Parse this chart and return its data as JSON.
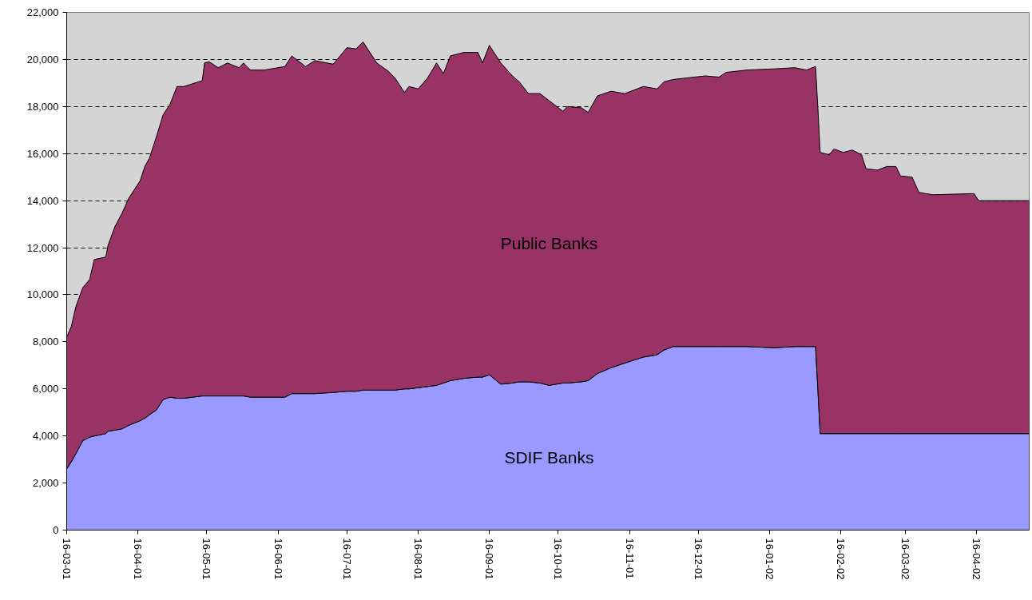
{
  "chart_data": {
    "type": "area",
    "stacked": true,
    "x": [
      "2001-03-16",
      "2001-03-18",
      "2001-03-20",
      "2001-03-23",
      "2001-03-26",
      "2001-03-28",
      "2001-04-02",
      "2001-04-03",
      "2001-04-06",
      "2001-04-09",
      "2001-04-12",
      "2001-04-17",
      "2001-04-19",
      "2001-04-21",
      "2001-04-24",
      "2001-04-27",
      "2001-04-30",
      "2001-05-03",
      "2001-05-06",
      "2001-05-14",
      "2001-05-15",
      "2001-05-17",
      "2001-05-21",
      "2001-05-25",
      "2001-05-30",
      "2001-06-01",
      "2001-06-04",
      "2001-06-10",
      "2001-06-19",
      "2001-06-22",
      "2001-06-28",
      "2001-07-02",
      "2001-07-10",
      "2001-07-16",
      "2001-07-20",
      "2001-07-23",
      "2001-07-29",
      "2001-08-03",
      "2001-08-06",
      "2001-08-10",
      "2001-08-12",
      "2001-08-16",
      "2001-08-20",
      "2001-08-24",
      "2001-08-27",
      "2001-08-30",
      "2001-09-05",
      "2001-09-11",
      "2001-09-13",
      "2001-09-16",
      "2001-09-21",
      "2001-09-26",
      "2001-09-29",
      "2001-10-03",
      "2001-10-08",
      "2001-10-12",
      "2001-10-18",
      "2001-10-20",
      "2001-10-26",
      "2001-10-29",
      "2001-11-02",
      "2001-11-08",
      "2001-11-14",
      "2001-11-22",
      "2001-11-28",
      "2001-12-01",
      "2001-12-05",
      "2001-12-19",
      "2001-12-25",
      "2001-12-28",
      "2002-01-06",
      "2002-01-18",
      "2002-01-27",
      "2002-02-01",
      "2002-02-05",
      "2002-02-06",
      "2002-02-07",
      "2002-02-11",
      "2002-02-13",
      "2002-02-17",
      "2002-02-21",
      "2002-02-25",
      "2002-02-27",
      "2002-03-04",
      "2002-03-08",
      "2002-03-12",
      "2002-03-14",
      "2002-03-19",
      "2002-03-22",
      "2002-03-28",
      "2002-04-15",
      "2002-04-17",
      "2002-05-09"
    ],
    "series": [
      {
        "name": "SDIF Banks",
        "color": "#9999ff",
        "values": [
          2600,
          2900,
          3250,
          3800,
          3950,
          4000,
          4100,
          4200,
          4250,
          4300,
          4450,
          4650,
          4750,
          4900,
          5100,
          5550,
          5650,
          5600,
          5600,
          5700,
          5700,
          5700,
          5700,
          5700,
          5700,
          5700,
          5650,
          5650,
          5650,
          5800,
          5800,
          5800,
          5850,
          5900,
          5900,
          5950,
          5950,
          5950,
          5950,
          6000,
          6000,
          6050,
          6100,
          6150,
          6250,
          6350,
          6450,
          6500,
          6500,
          6600,
          6200,
          6250,
          6300,
          6300,
          6250,
          6150,
          6250,
          6250,
          6300,
          6350,
          6650,
          6900,
          7100,
          7350,
          7450,
          7650,
          7800,
          7800,
          7800,
          7800,
          7800,
          7750,
          7800,
          7800,
          7800,
          6000,
          4100,
          4100,
          4100,
          4100,
          4100,
          4100,
          4100,
          4100,
          4100,
          4100,
          4100,
          4100,
          4100,
          4100,
          4100,
          4100,
          4100
        ]
      },
      {
        "name": "Public Banks",
        "color": "#993366",
        "values": [
          5600,
          5750,
          6250,
          6500,
          6700,
          7500,
          7500,
          7900,
          8650,
          9150,
          9650,
          10200,
          10700,
          10900,
          11600,
          12100,
          12450,
          13250,
          13250,
          13400,
          14150,
          14200,
          13950,
          14150,
          13950,
          14150,
          13900,
          13900,
          14050,
          14350,
          13900,
          14150,
          13950,
          14600,
          14550,
          14800,
          13900,
          13550,
          13250,
          12600,
          12850,
          12700,
          13100,
          13700,
          13150,
          13800,
          13850,
          13800,
          13350,
          14000,
          13650,
          13050,
          12750,
          12250,
          12300,
          12100,
          11550,
          11750,
          11650,
          11400,
          11800,
          11750,
          11450,
          11500,
          11300,
          11400,
          11350,
          11500,
          11450,
          11650,
          11750,
          11850,
          11850,
          11750,
          11900,
          11950,
          11950,
          11850,
          12100,
          11950,
          12050,
          11850,
          11250,
          11200,
          11350,
          11350,
          10950,
          10900,
          10250,
          10150,
          10200,
          9900,
          9900
        ]
      }
    ],
    "xlim": [
      "2001-03-16",
      "2002-05-09"
    ],
    "xticks": [
      {
        "value": "2001-03-16",
        "label": "16-03-01"
      },
      {
        "value": "2001-04-16",
        "label": "16-04-01"
      },
      {
        "value": "2001-05-16",
        "label": "16-05-01"
      },
      {
        "value": "2001-06-16",
        "label": "16-06-01"
      },
      {
        "value": "2001-07-16",
        "label": "16-07-01"
      },
      {
        "value": "2001-08-16",
        "label": "16-08-01"
      },
      {
        "value": "2001-09-16",
        "label": "16-09-01"
      },
      {
        "value": "2001-10-16",
        "label": "16-10-01"
      },
      {
        "value": "2001-11-16",
        "label": "16-11-01"
      },
      {
        "value": "2001-12-16",
        "label": "16-12-01"
      },
      {
        "value": "2002-01-16",
        "label": "16-01-02"
      },
      {
        "value": "2002-02-16",
        "label": "16-02-02"
      },
      {
        "value": "2002-03-16",
        "label": "16-03-02"
      },
      {
        "value": "2002-04-16",
        "label": "16-04-02"
      }
    ],
    "ylim": [
      0,
      22000
    ],
    "yticks": [
      0,
      {
        "value": 2000,
        "label": "2,000"
      },
      {
        "value": 4000,
        "label": "4,000"
      },
      {
        "value": 6000,
        "label": "6,000"
      },
      {
        "value": 8000,
        "label": "8,000"
      },
      {
        "value": 10000,
        "label": "10,000"
      },
      {
        "value": 12000,
        "label": "12,000"
      },
      {
        "value": 14000,
        "label": "14,000"
      },
      {
        "value": 16000,
        "label": "16,000"
      },
      {
        "value": 18000,
        "label": "18,000"
      },
      {
        "value": 20000,
        "label": "20,000"
      },
      {
        "value": 22000,
        "label": "22,000"
      }
    ],
    "grid": "y"
  }
}
